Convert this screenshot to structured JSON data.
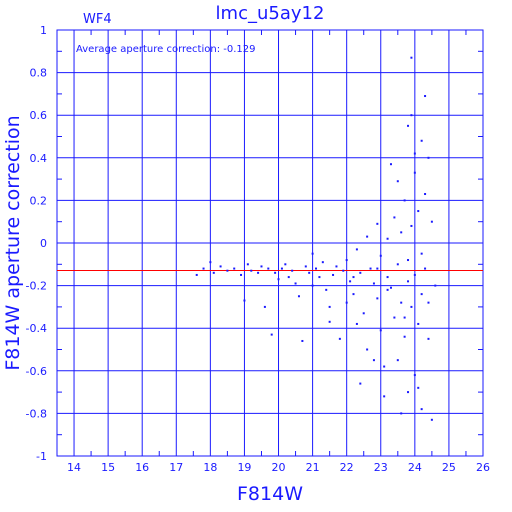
{
  "chart_data": {
    "type": "scatter",
    "title": "lmc_u5ay12",
    "corner_label": "WF4",
    "annotation": "Average aperture correction: -0.129",
    "xlabel": "F814W",
    "ylabel": "F814W aperture correction",
    "xlim": [
      13.5,
      26
    ],
    "ylim": [
      -1,
      1
    ],
    "x_ticks": [
      "14",
      "15",
      "16",
      "17",
      "18",
      "19",
      "20",
      "21",
      "22",
      "23",
      "24",
      "25",
      "26"
    ],
    "y_ticks": [
      "-1",
      "-0.8",
      "-0.6",
      "-0.4",
      "-0.2",
      "0",
      "0.2",
      "0.4",
      "0.6",
      "0.8",
      "1"
    ],
    "grid": true,
    "reference_line": {
      "y": -0.129,
      "color": "#ff0000"
    },
    "point_color": "#1a1aff",
    "axis_color": "#1a1aff",
    "points": [
      [
        17.6,
        -0.15
      ],
      [
        17.8,
        -0.12
      ],
      [
        18.0,
        -0.09
      ],
      [
        18.1,
        -0.14
      ],
      [
        18.3,
        -0.11
      ],
      [
        18.5,
        -0.13
      ],
      [
        18.7,
        -0.12
      ],
      [
        18.9,
        -0.15
      ],
      [
        19.0,
        -0.27
      ],
      [
        19.1,
        -0.1
      ],
      [
        19.2,
        -0.13
      ],
      [
        19.4,
        -0.14
      ],
      [
        19.5,
        -0.11
      ],
      [
        19.6,
        -0.3
      ],
      [
        19.7,
        -0.12
      ],
      [
        19.8,
        -0.43
      ],
      [
        19.9,
        -0.14
      ],
      [
        20.0,
        -0.17
      ],
      [
        20.1,
        -0.12
      ],
      [
        20.2,
        -0.1
      ],
      [
        20.3,
        -0.16
      ],
      [
        20.4,
        -0.13
      ],
      [
        20.5,
        -0.19
      ],
      [
        20.6,
        -0.25
      ],
      [
        20.7,
        -0.46
      ],
      [
        20.8,
        -0.11
      ],
      [
        20.9,
        -0.14
      ],
      [
        21.0,
        -0.2
      ],
      [
        21.0,
        -0.05
      ],
      [
        21.1,
        -0.12
      ],
      [
        21.2,
        -0.16
      ],
      [
        21.3,
        -0.09
      ],
      [
        21.4,
        -0.22
      ],
      [
        21.5,
        -0.3
      ],
      [
        21.5,
        -0.37
      ],
      [
        21.6,
        -0.15
      ],
      [
        21.7,
        -0.11
      ],
      [
        21.8,
        -0.45
      ],
      [
        21.9,
        -0.13
      ],
      [
        22.0,
        -0.08
      ],
      [
        22.1,
        -0.18
      ],
      [
        22.2,
        -0.24
      ],
      [
        22.3,
        -0.03
      ],
      [
        22.4,
        -0.14
      ],
      [
        22.5,
        -0.33
      ],
      [
        22.6,
        -0.5
      ],
      [
        22.7,
        -0.12
      ],
      [
        22.8,
        -0.19
      ],
      [
        22.9,
        -0.26
      ],
      [
        23.0,
        -0.41
      ],
      [
        23.0,
        -0.06
      ],
      [
        23.1,
        -0.58
      ],
      [
        23.2,
        -0.16
      ],
      [
        23.2,
        0.02
      ],
      [
        23.3,
        -0.21
      ],
      [
        23.4,
        -0.35
      ],
      [
        23.4,
        0.12
      ],
      [
        23.5,
        -0.1
      ],
      [
        23.5,
        -0.55
      ],
      [
        23.6,
        -0.28
      ],
      [
        23.6,
        0.05
      ],
      [
        23.7,
        -0.44
      ],
      [
        23.7,
        0.2
      ],
      [
        23.8,
        -0.18
      ],
      [
        23.8,
        -0.7
      ],
      [
        23.8,
        0.55
      ],
      [
        23.9,
        -0.3
      ],
      [
        23.9,
        0.08
      ],
      [
        23.9,
        0.87
      ],
      [
        24.0,
        -0.62
      ],
      [
        24.0,
        -0.15
      ],
      [
        24.0,
        0.33
      ],
      [
        24.1,
        -0.38
      ],
      [
        24.1,
        0.15
      ],
      [
        24.2,
        -0.24
      ],
      [
        24.2,
        -0.78
      ],
      [
        24.2,
        0.48
      ],
      [
        24.3,
        -0.12
      ],
      [
        24.3,
        0.23
      ],
      [
        24.3,
        0.69
      ],
      [
        24.4,
        -0.45
      ],
      [
        24.4,
        0.4
      ],
      [
        24.5,
        -0.83
      ],
      [
        24.5,
        0.1
      ],
      [
        24.6,
        -0.2
      ],
      [
        22.8,
        -0.55
      ],
      [
        22.9,
        0.09
      ],
      [
        23.1,
        -0.72
      ],
      [
        23.3,
        0.37
      ],
      [
        23.6,
        -0.8
      ],
      [
        23.9,
        0.6
      ],
      [
        24.1,
        -0.68
      ],
      [
        22.0,
        -0.28
      ],
      [
        22.3,
        -0.38
      ],
      [
        22.6,
        0.03
      ],
      [
        22.4,
        -0.66
      ],
      [
        23.5,
        0.29
      ],
      [
        24.0,
        0.42
      ],
      [
        23.7,
        -0.35
      ],
      [
        24.2,
        -0.05
      ],
      [
        22.2,
        -0.16
      ],
      [
        22.9,
        -0.12
      ],
      [
        23.2,
        -0.22
      ],
      [
        23.8,
        -0.08
      ],
      [
        24.4,
        -0.28
      ]
    ]
  }
}
